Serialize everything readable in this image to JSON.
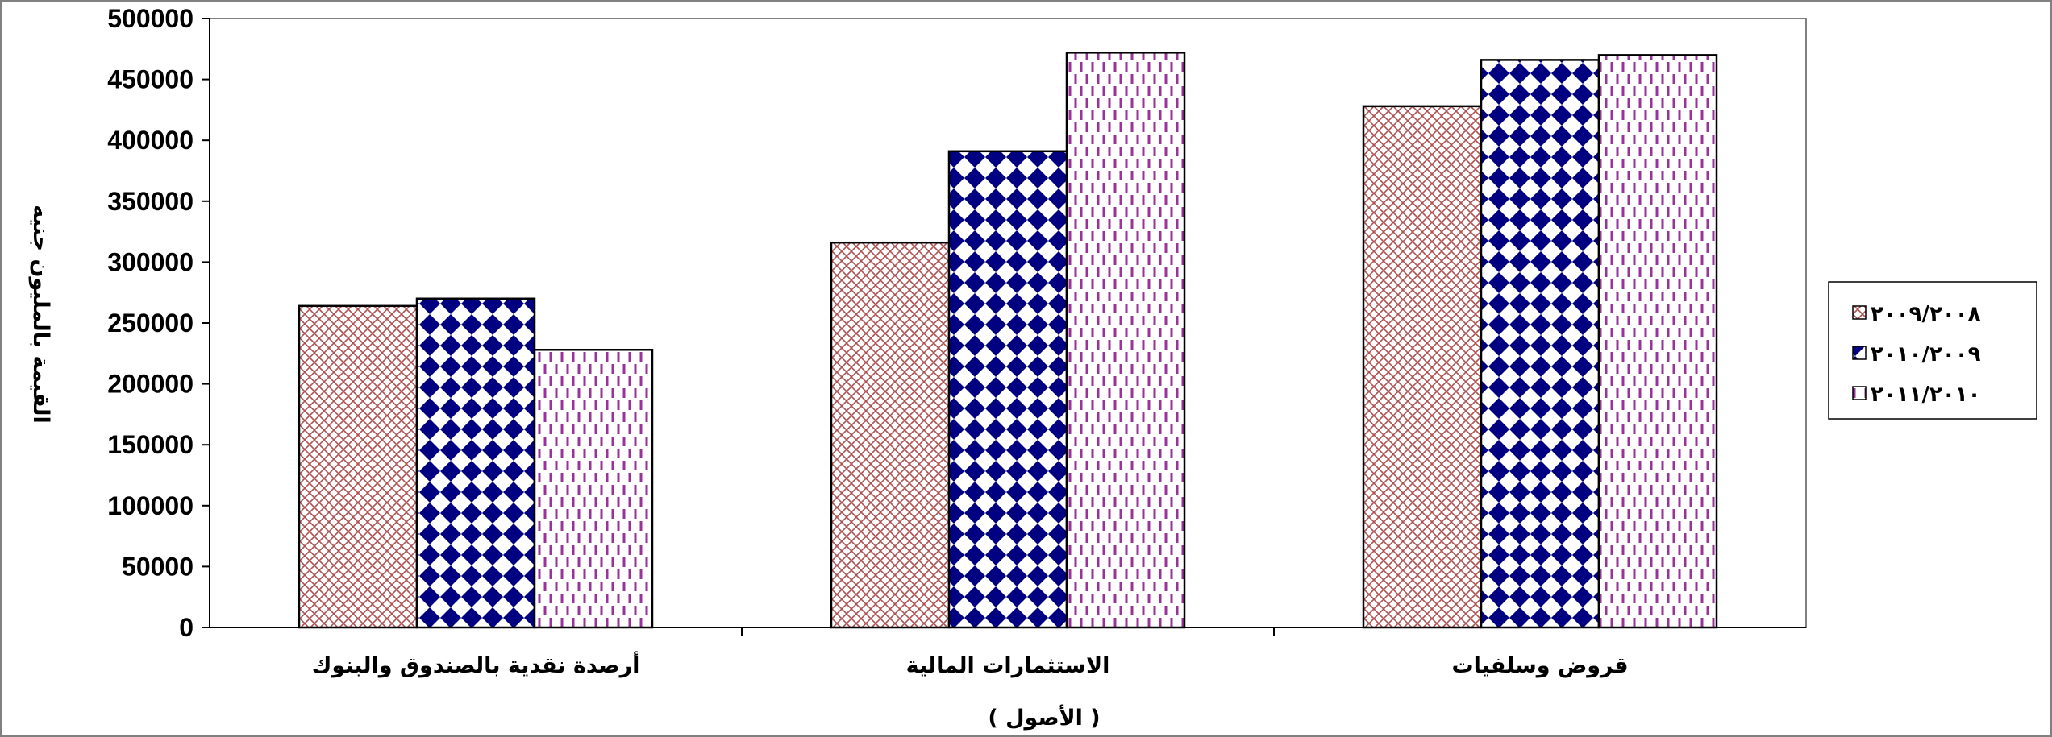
{
  "chart_data": {
    "type": "bar",
    "categories": [
      "أرصدة نقدية بالصندوق والبنوك",
      "الاستثمارات المالية",
      "قروض وسلفيات"
    ],
    "series": [
      {
        "name": "٢٠٠٩/٢٠٠٨",
        "values": [
          264000,
          316000,
          428000
        ],
        "color": "#B05050",
        "pattern": "crosshatch"
      },
      {
        "name": "٢٠١٠/٢٠٠٩",
        "values": [
          270000,
          391000,
          466000
        ],
        "color": "#000080",
        "pattern": "diamond-check"
      },
      {
        "name": "٢٠١١/٢٠١٠",
        "values": [
          228000,
          472000,
          470000
        ],
        "color": "#993399",
        "pattern": "dashed-vertical"
      }
    ],
    "xlabel": "( الأصول )",
    "ylabel": "القيمة بالمليون جنيه",
    "ylim": [
      0,
      500000
    ],
    "yticks": [
      "0",
      "50000",
      "100000",
      "150000",
      "200000",
      "250000",
      "300000",
      "350000",
      "400000",
      "450000",
      "500000"
    ],
    "grid": false,
    "legend_position": "right"
  }
}
